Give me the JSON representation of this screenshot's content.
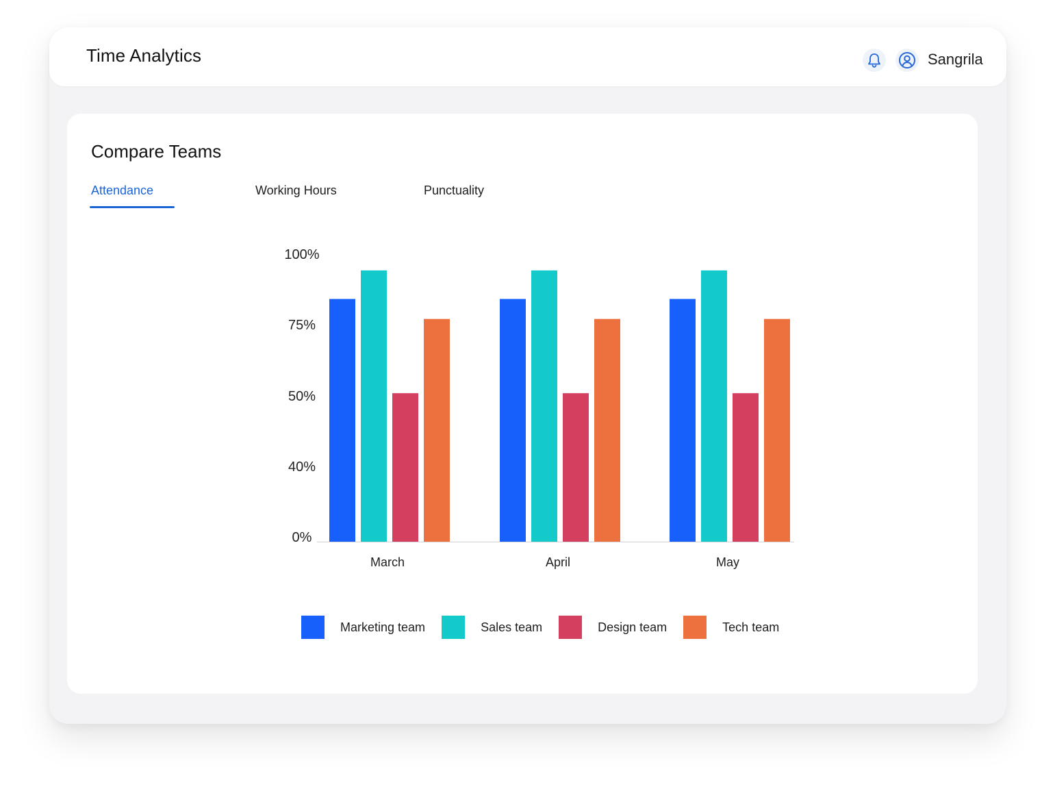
{
  "header": {
    "title": "Time Analytics",
    "user_name": "Sangrila",
    "icons": [
      "bell-icon",
      "user-circle-icon"
    ]
  },
  "section": {
    "title": "Compare Teams",
    "tabs": [
      {
        "label": "Attendance",
        "active": true
      },
      {
        "label": "Working Hours",
        "active": false
      },
      {
        "label": "Punctuality",
        "active": false
      }
    ]
  },
  "colors": {
    "accent": "#1a64d6",
    "marketing": "#1760fb",
    "sales": "#14c9c9",
    "design": "#d43f60",
    "tech": "#ec713f"
  },
  "chart_data": {
    "type": "bar",
    "categories": [
      "March",
      "April",
      "May"
    ],
    "y_ticks": [
      "100%",
      "75%",
      "50%",
      "40%",
      "0%"
    ],
    "y_tick_values": [
      100,
      75,
      50,
      40,
      0
    ],
    "series": [
      {
        "name": "Marketing team",
        "color": "#1760fb",
        "values": [
          85,
          85,
          85
        ]
      },
      {
        "name": "Sales team",
        "color": "#14c9c9",
        "values": [
          95,
          95,
          95
        ]
      },
      {
        "name": "Design team",
        "color": "#d43f60",
        "values": [
          52,
          52,
          52
        ]
      },
      {
        "name": "Tech team",
        "color": "#ec713f",
        "values": [
          78,
          78,
          78
        ]
      }
    ],
    "legend_position": "bottom",
    "grid": false
  }
}
